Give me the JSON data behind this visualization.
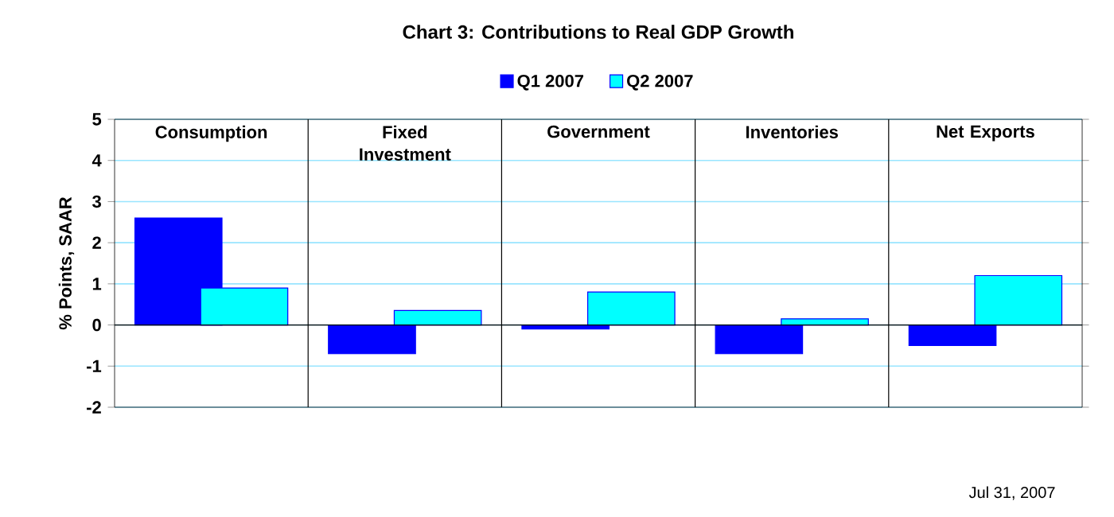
{
  "chart_data": {
    "type": "bar",
    "title": "Chart 3: Contributions to Real GDP Growth",
    "ylabel": "% Points, SAAR",
    "categories": [
      "Consumption",
      "Fixed Investment",
      "Government",
      "Inventories",
      "Net Exports"
    ],
    "series": [
      {
        "name": "Q1 2007",
        "color": "#0000ff",
        "values": [
          2.6,
          -0.7,
          -0.1,
          -0.7,
          -0.5
        ]
      },
      {
        "name": "Q2 2007",
        "color": "#00ffff",
        "values": [
          0.9,
          0.35,
          0.8,
          0.15,
          1.2
        ]
      }
    ],
    "ylim": [
      -2,
      5
    ],
    "yticks": [
      -2,
      -1,
      0,
      1,
      2,
      3,
      4,
      5
    ],
    "grid": "y",
    "legend": "top",
    "annotations": [
      "Jul 31, 2007"
    ]
  }
}
